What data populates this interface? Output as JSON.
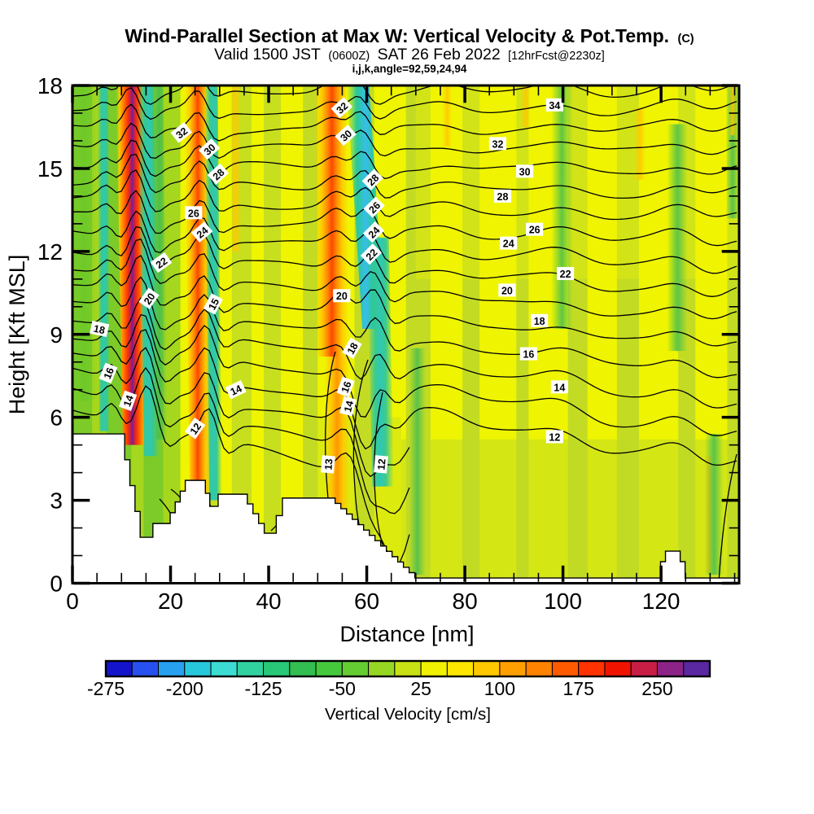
{
  "header": {
    "title": "Wind-Parallel Section at Max W: Vertical Velocity & Pot.Temp.",
    "title_suffix": "(C)",
    "valid_prefix": "Valid 1500 JST",
    "valid_zulu": "(0600Z)",
    "valid_date": "SAT 26 Feb 2022",
    "forecast_tag": "[12hrFcst@2230z]",
    "model_info": "i,j,k,angle=92,59,24,94"
  },
  "chart_data": {
    "type": "heatmap",
    "subtype": "vertical-cross-section-filled-contours-with-line-contours",
    "title": "Wind-Parallel Section at Max W: Vertical Velocity & Pot.Temp. (C)",
    "xlabel": "Distance [nm]",
    "ylabel": "Height [Kft MSL]",
    "xlim": [
      0,
      136
    ],
    "ylim": [
      0,
      18
    ],
    "x_ticks": [
      0,
      20,
      40,
      60,
      80,
      100,
      120
    ],
    "x_minor_step": 5,
    "y_ticks": [
      0,
      3,
      6,
      9,
      12,
      15,
      18
    ],
    "y_minor_step": 1,
    "colorbar": {
      "caption": "Vertical Velocity [cm/s]",
      "min": -275,
      "max": 300,
      "step": 25,
      "tick_labels": [
        -275,
        -200,
        -125,
        -50,
        25,
        100,
        175,
        250
      ],
      "colors": [
        "#1414CC",
        "#2850F0",
        "#28A0F0",
        "#28C8DC",
        "#3CDCD2",
        "#32D2A0",
        "#28C878",
        "#32BE50",
        "#46C83C",
        "#64CD32",
        "#96D723",
        "#C8E114",
        "#F0F000",
        "#FFE600",
        "#FFC800",
        "#FFA000",
        "#FF8200",
        "#FF5A00",
        "#FF3200",
        "#F01400",
        "#C81E46",
        "#8C2387",
        "#5A28A0"
      ]
    },
    "contour_field": {
      "name": "Potential Temperature",
      "unit": "C",
      "labeled_levels": [
        12,
        13,
        14,
        15,
        16,
        18,
        20,
        22,
        24,
        26,
        28,
        30,
        32,
        34
      ],
      "labels": [
        [
          32,
          22.2,
          16.3,
          -38
        ],
        [
          30,
          27.9,
          15.7,
          -42
        ],
        [
          28,
          29.7,
          14.8,
          -42
        ],
        [
          26,
          24.7,
          13.4,
          0
        ],
        [
          24,
          26.4,
          12.7,
          -40
        ],
        [
          22,
          18.1,
          11.6,
          -35
        ],
        [
          20,
          15.6,
          10.3,
          -55
        ],
        [
          18,
          5.5,
          9.2,
          12
        ],
        [
          15,
          28.7,
          10.1,
          -62
        ],
        [
          16,
          7.3,
          7.6,
          -68
        ],
        [
          14,
          11.3,
          6.6,
          -70
        ],
        [
          32,
          54.9,
          17.2,
          -42
        ],
        [
          30,
          55.7,
          16.2,
          -42
        ],
        [
          28,
          61.2,
          14.6,
          -45
        ],
        [
          26,
          61.5,
          13.6,
          -45
        ],
        [
          24,
          61.4,
          12.7,
          -45
        ],
        [
          22,
          60.9,
          11.9,
          -45
        ],
        [
          20,
          54.9,
          10.4,
          0
        ],
        [
          18,
          57.0,
          8.5,
          -60
        ],
        [
          16,
          55.7,
          7.1,
          -70
        ],
        [
          14,
          56.2,
          6.4,
          -75
        ],
        [
          13,
          52.1,
          4.3,
          -85
        ],
        [
          12,
          62.9,
          4.3,
          -85
        ],
        [
          14,
          33.3,
          7.0,
          -25
        ],
        [
          12,
          25.0,
          5.6,
          -55
        ],
        [
          34,
          98.3,
          17.3,
          0
        ],
        [
          32,
          86.7,
          15.9,
          0
        ],
        [
          30,
          92.2,
          14.9,
          0
        ],
        [
          28,
          87.7,
          14.0,
          0
        ],
        [
          26,
          94.2,
          12.8,
          0
        ],
        [
          24,
          88.9,
          12.3,
          0
        ],
        [
          22,
          100.5,
          11.2,
          0
        ],
        [
          20,
          88.6,
          10.6,
          0
        ],
        [
          18,
          95.2,
          9.5,
          0
        ],
        [
          16,
          93.0,
          8.3,
          0
        ],
        [
          14,
          99.3,
          7.1,
          0
        ],
        [
          12,
          98.3,
          5.3,
          0
        ]
      ]
    },
    "features": [
      {
        "type": "updraft",
        "x_nm": 11.5,
        "peak_cm_s": 290
      },
      {
        "type": "downdraft",
        "x_nm": 15.0,
        "peak_cm_s": -150
      },
      {
        "type": "updraft",
        "x_nm": 25.0,
        "peak_cm_s": 180
      },
      {
        "type": "downdraft",
        "x_nm": 28.3,
        "peak_cm_s": -100
      },
      {
        "type": "updraft",
        "x_nm": 53.0,
        "peak_cm_s": 200
      },
      {
        "type": "downdraft",
        "x_nm": 58.5,
        "peak_cm_s": -230
      },
      {
        "type": "weak-mixed-background",
        "x_nm": 75,
        "peak_cm_s": 25
      }
    ],
    "terrain_profile_nm_kft": [
      [
        0,
        5.4
      ],
      [
        9.6,
        5.4
      ],
      [
        13.8,
        1.66
      ],
      [
        15.6,
        1.66
      ],
      [
        16.4,
        2.16
      ],
      [
        18.9,
        2.16
      ],
      [
        23.0,
        3.72
      ],
      [
        26.2,
        3.72
      ],
      [
        28.0,
        2.78
      ],
      [
        29.7,
        3.22
      ],
      [
        34.5,
        3.22
      ],
      [
        39.1,
        1.81
      ],
      [
        40.3,
        1.81
      ],
      [
        42.8,
        3.08
      ],
      [
        52.4,
        3.08
      ],
      [
        69.8,
        0.19
      ],
      [
        118.7,
        0.19
      ],
      [
        119.9,
        0.78
      ],
      [
        120.9,
        1.16
      ],
      [
        123.1,
        1.16
      ],
      [
        123.9,
        0.78
      ],
      [
        124.9,
        0.19
      ],
      [
        135.8,
        0.19
      ]
    ],
    "render_bands": [
      [
        "green-wash",
        2.3,
        2.8,
        0,
        18,
        6.6
      ],
      [
        "downdraft-teal",
        6.2,
        1.1,
        0.4,
        18,
        5.5
      ],
      [
        "updraft-major",
        11.5,
        2.6,
        1.4,
        18,
        5.0
      ],
      [
        "downdraft-teal",
        14.9,
        1.6,
        1.3,
        18,
        4.6
      ],
      [
        "green",
        17.3,
        1.2,
        0.8,
        18,
        5.2
      ],
      [
        "updraft-strong",
        25.0,
        2.1,
        1.1,
        18,
        2.2
      ],
      [
        "downdraft-teal",
        28.3,
        1.3,
        0.9,
        18,
        3.0
      ],
      [
        "orange-faint",
        33.0,
        0.9,
        0.5,
        18,
        12.0
      ],
      [
        "updraft-strong",
        52.6,
        3.1,
        0.6,
        18,
        8.2
      ],
      [
        "updraft-mod",
        53.8,
        2.4,
        0.3,
        8.2,
        0.4
      ],
      [
        "downdraft-cyan",
        58.2,
        2.3,
        3.2,
        18,
        9.2
      ],
      [
        "downdraft-teal",
        62.3,
        2.2,
        1.0,
        12.5,
        3.5
      ],
      [
        "green",
        70.3,
        1.7,
        0,
        8.5,
        0.3
      ],
      [
        "orange-faint",
        76.4,
        1.0,
        0,
        18,
        15.8
      ],
      [
        "orange-faint",
        92.4,
        1.0,
        0,
        18,
        16.5
      ],
      [
        "green",
        99.8,
        2.2,
        0,
        18,
        9.2
      ],
      [
        "orange-faint",
        115.7,
        1.1,
        0,
        17.2,
        14.6
      ],
      [
        "green",
        123.3,
        2.1,
        0,
        16.6,
        8.4
      ],
      [
        "orange-faint",
        129.8,
        0.9,
        0,
        4.6,
        0.4
      ],
      [
        "green",
        130.8,
        1.9,
        0,
        5.4,
        0.3
      ],
      [
        "green",
        134.6,
        1.4,
        0,
        18,
        13.2
      ],
      [
        "orange-faint",
        134.6,
        0.8,
        0,
        18,
        16.2
      ]
    ]
  }
}
